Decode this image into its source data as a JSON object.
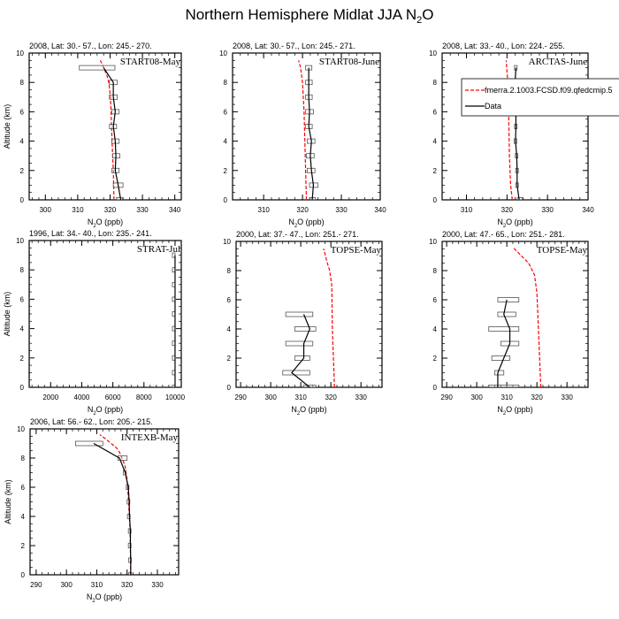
{
  "title": {
    "pre": "Northern Hemisphere Midlat JJA N",
    "sub": "2",
    "post": "O"
  },
  "xlabel": {
    "pre": "N",
    "sub": "2",
    "post": "O (ppb)"
  },
  "ylabel": "Altitude (km)",
  "legend": {
    "model": "fmerra.2.1003.FCSD.f09.qfedcmip.5",
    "data": "Data"
  },
  "colors": {
    "model": "#ff0000",
    "data": "#000000"
  },
  "chart_data": [
    {
      "type": "line",
      "subtitle": "2008, Lat:  30.- 57., Lon: 245.- 270.",
      "campaign": "START08-May",
      "xlim": [
        295,
        342
      ],
      "ylim": [
        0,
        10
      ],
      "xticks": [
        300,
        310,
        320,
        330,
        340
      ],
      "yticks": [
        0,
        2,
        4,
        6,
        8,
        10
      ],
      "data": {
        "alt": [
          0,
          1,
          2,
          3,
          4,
          5,
          6,
          7,
          8,
          9
        ],
        "value": [
          323.3,
          322.5,
          321.6,
          321.8,
          321.6,
          321,
          321.6,
          321,
          321,
          318
        ],
        "lo": [
          322,
          321,
          320.5,
          320.8,
          320.5,
          319.8,
          320.5,
          319.8,
          319.8,
          310.5
        ],
        "hi": [
          323.8,
          324,
          322.8,
          323,
          322.8,
          322,
          322.8,
          322.2,
          322.2,
          321.5
        ]
      },
      "model": {
        "alt": [
          0,
          2,
          4,
          6,
          7,
          8,
          8.5,
          9,
          9.5
        ],
        "value": [
          321.2,
          321,
          320.6,
          320.3,
          320.1,
          319.6,
          319,
          318,
          317
        ]
      }
    },
    {
      "type": "line",
      "subtitle": "2008, Lat:  30.- 57., Lon: 245.- 271.",
      "campaign": "START08-June",
      "xlim": [
        302,
        340
      ],
      "ylim": [
        0,
        10
      ],
      "xticks": [
        310,
        320,
        330,
        340
      ],
      "yticks": [
        0,
        2,
        4,
        6,
        8,
        10
      ],
      "data": {
        "alt": [
          0,
          1,
          2,
          3,
          4,
          5,
          6,
          7,
          8,
          9
        ],
        "value": [
          322.5,
          322.8,
          322.3,
          322,
          322.3,
          321.6,
          321.8,
          321.6,
          321.6,
          321.6
        ],
        "lo": [
          321.8,
          321.8,
          321.2,
          321,
          321.2,
          320.8,
          320.8,
          320.8,
          320.8,
          320.8
        ],
        "hi": [
          323.3,
          324,
          323.2,
          323,
          323.2,
          322.5,
          322.8,
          322.5,
          322.5,
          322.4
        ]
      },
      "model": {
        "alt": [
          0,
          2,
          4,
          6,
          8,
          9,
          9.5
        ],
        "value": [
          321,
          320.8,
          320.6,
          320.4,
          320,
          319.5,
          319
        ]
      }
    },
    {
      "type": "line",
      "subtitle": "2008, Lat:  33.- 40., Lon: 224.- 255.",
      "campaign": "ARCTAS-June",
      "xlim": [
        304,
        340
      ],
      "ylim": [
        0,
        10
      ],
      "xticks": [
        310,
        320,
        330,
        340
      ],
      "yticks": [
        0,
        2,
        4,
        6,
        8,
        10
      ],
      "data": {
        "alt": [
          0,
          1,
          2,
          3,
          4,
          5,
          6,
          7,
          8,
          9
        ],
        "value": [
          323,
          322.5,
          322.5,
          322.4,
          322.1,
          322.2,
          322.2,
          321.8,
          322,
          322.2
        ],
        "lo": [
          322.5,
          322.2,
          322.2,
          322.1,
          321.8,
          321.9,
          321.9,
          321.5,
          321.7,
          321.9
        ],
        "hi": [
          323.8,
          322.8,
          322.8,
          322.7,
          322.4,
          322.5,
          322.5,
          322.1,
          322.5,
          322.5
        ]
      },
      "model": {
        "alt": [
          0,
          1,
          3,
          6,
          8,
          9.5
        ],
        "value": [
          321.3,
          320.9,
          320.6,
          320.4,
          320.2,
          319.8
        ]
      }
    },
    {
      "type": "line",
      "subtitle": "1996, Lat: 34.- 40., Lon: 235.- 241.",
      "campaign": "STRAT-Jul",
      "xlim": [
        620,
        10400
      ],
      "ylim": [
        0,
        10
      ],
      "xticks": [
        2000,
        4000,
        6000,
        8000,
        10000
      ],
      "yticks": [
        0,
        2,
        4,
        6,
        8,
        10
      ],
      "data": {
        "alt": [
          0,
          1,
          2,
          3,
          4,
          5,
          6,
          7,
          8,
          9
        ],
        "value": [
          10000,
          10000,
          10000,
          10000,
          10000,
          10000,
          10000,
          10000,
          10000,
          10000
        ],
        "lo": [
          10000,
          10000,
          10000,
          10000,
          10000,
          10000,
          10000,
          10000,
          10000,
          10000
        ],
        "hi": [
          10000,
          10000,
          10000,
          10000,
          10000,
          10000,
          10000,
          10000,
          10000,
          10000
        ]
      },
      "model": {
        "alt": [
          0,
          9.5
        ],
        "value": [
          640,
          640
        ]
      }
    },
    {
      "type": "line",
      "subtitle": "2000, Lat: 37.- 47., Lon: 251.- 271.",
      "campaign": "TOPSE-May",
      "xlim": [
        288.5,
        337
      ],
      "ylim": [
        0,
        10
      ],
      "xticks": [
        290,
        300,
        310,
        320,
        330
      ],
      "yticks": [
        0,
        2,
        4,
        6,
        8,
        10
      ],
      "data": {
        "alt": [
          0,
          1,
          2,
          3,
          4,
          5
        ],
        "value": [
          313,
          307,
          311,
          311,
          313,
          311
        ],
        "lo": [
          311,
          304,
          308,
          305,
          308,
          305
        ],
        "hi": [
          315,
          313,
          313,
          314,
          315,
          314
        ]
      },
      "model": {
        "alt": [
          0,
          4,
          7,
          8,
          8.6,
          9.5
        ],
        "value": [
          321.2,
          320.5,
          320.3,
          319.6,
          318.7,
          317.6
        ]
      }
    },
    {
      "type": "line",
      "subtitle": "2000, Lat: 47.- 65., Lon: 251.- 281.",
      "campaign": "TOPSE-May",
      "xlim": [
        288.5,
        337
      ],
      "ylim": [
        0,
        10
      ],
      "xticks": [
        290,
        300,
        310,
        320,
        330
      ],
      "yticks": [
        0,
        2,
        4,
        6,
        8,
        10
      ],
      "data": {
        "alt": [
          0,
          1,
          2,
          3,
          4,
          5,
          6
        ],
        "value": [
          307,
          307,
          309,
          311,
          311,
          309,
          310
        ],
        "lo": [
          304,
          306,
          305,
          308,
          304,
          307,
          307
        ],
        "hi": [
          314,
          309,
          311,
          314,
          314,
          313,
          314
        ]
      },
      "model": {
        "alt": [
          0,
          4,
          6.5,
          7.7,
          8.5,
          9.6
        ],
        "value": [
          321.3,
          320.5,
          320,
          319.2,
          317.3,
          312
        ]
      }
    },
    {
      "type": "line",
      "subtitle": "2006, Lat: 56.- 62., Lon: 205.- 215.",
      "campaign": "INTEXB-May",
      "xlim": [
        288,
        337
      ],
      "ylim": [
        0,
        10
      ],
      "xticks": [
        290,
        300,
        310,
        320,
        330
      ],
      "yticks": [
        0,
        2,
        4,
        6,
        8,
        10
      ],
      "data": {
        "alt": [
          0,
          1,
          2,
          3,
          4,
          5,
          6,
          7,
          8,
          9
        ],
        "value": [
          321.2,
          321.2,
          321.1,
          321.1,
          320.8,
          320.7,
          320.4,
          319.4,
          317.5,
          309
        ],
        "lo": [
          321,
          321,
          320.9,
          320.9,
          320.6,
          320.5,
          320.2,
          319.2,
          317,
          303
        ],
        "hi": [
          321.4,
          321.4,
          321.3,
          321.3,
          321,
          320.9,
          320.6,
          319.6,
          320,
          312
        ]
      },
      "model": {
        "alt": [
          0,
          3,
          5,
          6.5,
          7.5,
          8.4,
          8.7,
          9.3,
          9.6
        ],
        "value": [
          321.2,
          321,
          320.5,
          320,
          319.3,
          317.5,
          316.5,
          313,
          311
        ]
      }
    }
  ]
}
